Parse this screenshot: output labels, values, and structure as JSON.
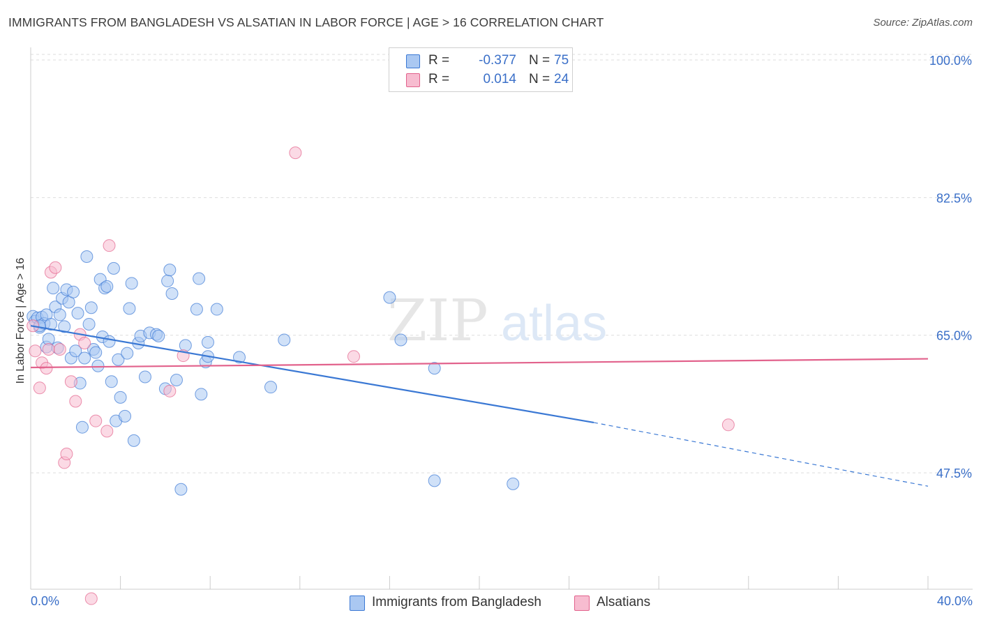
{
  "title": "IMMIGRANTS FROM BANGLADESH VS ALSATIAN IN LABOR FORCE | AGE > 16 CORRELATION CHART",
  "source": "Source: ZipAtlas.com",
  "watermark": {
    "zip": "ZIP",
    "atlas": "atlas"
  },
  "legend_top": [
    {
      "swatch_color": "#aac8f2",
      "r_label": "R =",
      "r_value": "-0.377",
      "n_label": "N =",
      "n_value": "75"
    },
    {
      "swatch_color": "#f7bcd0",
      "r_label": "R =",
      "r_value": "0.014",
      "n_label": "N =",
      "n_value": "24"
    }
  ],
  "legend_bottom": [
    {
      "label": "Immigrants from Bangladesh",
      "swatch_color": "#aac8f2"
    },
    {
      "label": "Alsatians",
      "swatch_color": "#f7bcd0"
    }
  ],
  "chart_data": {
    "type": "scatter",
    "title": "IMMIGRANTS FROM BANGLADESH VS ALSATIAN IN LABOR FORCE | AGE > 16 CORRELATION CHART",
    "xlabel": "",
    "ylabel": "In Labor Force | Age > 16",
    "xlim": [
      0,
      40
    ],
    "ylim": [
      32.7,
      101.6
    ],
    "x_tick_labels": [
      "0.0%",
      "40.0%"
    ],
    "y_ticks": [
      47.5,
      65.0,
      82.5,
      100.0
    ],
    "y_tick_labels": [
      "47.5%",
      "65.0%",
      "82.5%",
      "100.0%"
    ],
    "grid": "horizontal dashed",
    "legend_placement": "top-center and bottom",
    "series": [
      {
        "name": "Immigrants from Bangladesh",
        "color": "#3a78d4",
        "marker_color": "#aac8f2",
        "points": [
          [
            0.1,
            67.4
          ],
          [
            0.2,
            66.8
          ],
          [
            0.3,
            67.2
          ],
          [
            0.4,
            66.0
          ],
          [
            0.5,
            67.3
          ],
          [
            0.6,
            66.5
          ],
          [
            0.7,
            67.6
          ],
          [
            0.7,
            63.5
          ],
          [
            0.8,
            64.5
          ],
          [
            0.9,
            66.4
          ],
          [
            1.0,
            71.0
          ],
          [
            1.1,
            68.6
          ],
          [
            1.2,
            63.4
          ],
          [
            1.3,
            67.6
          ],
          [
            1.4,
            69.7
          ],
          [
            1.5,
            66.1
          ],
          [
            1.6,
            70.8
          ],
          [
            1.7,
            69.2
          ],
          [
            1.8,
            62.1
          ],
          [
            1.9,
            70.5
          ],
          [
            2.0,
            63.0
          ],
          [
            2.1,
            67.8
          ],
          [
            2.2,
            58.9
          ],
          [
            2.3,
            53.3
          ],
          [
            2.4,
            62.1
          ],
          [
            2.5,
            75.0
          ],
          [
            2.6,
            66.4
          ],
          [
            2.7,
            68.5
          ],
          [
            2.8,
            63.2
          ],
          [
            2.9,
            62.8
          ],
          [
            3.0,
            61.1
          ],
          [
            3.1,
            72.1
          ],
          [
            3.2,
            64.8
          ],
          [
            3.3,
            71.0
          ],
          [
            3.4,
            71.2
          ],
          [
            3.5,
            64.2
          ],
          [
            3.6,
            59.1
          ],
          [
            3.7,
            73.5
          ],
          [
            3.8,
            54.1
          ],
          [
            3.9,
            61.9
          ],
          [
            4.0,
            57.1
          ],
          [
            4.2,
            54.7
          ],
          [
            4.3,
            62.7
          ],
          [
            4.4,
            68.4
          ],
          [
            4.5,
            71.6
          ],
          [
            4.6,
            51.6
          ],
          [
            4.8,
            64.0
          ],
          [
            4.9,
            64.9
          ],
          [
            5.1,
            59.7
          ],
          [
            5.3,
            65.3
          ],
          [
            5.6,
            65.1
          ],
          [
            5.7,
            64.9
          ],
          [
            6.0,
            58.2
          ],
          [
            6.1,
            71.9
          ],
          [
            6.2,
            73.3
          ],
          [
            6.3,
            70.3
          ],
          [
            6.5,
            59.3
          ],
          [
            6.7,
            45.4
          ],
          [
            6.9,
            63.7
          ],
          [
            7.4,
            68.3
          ],
          [
            7.5,
            72.2
          ],
          [
            7.6,
            57.5
          ],
          [
            7.8,
            61.6
          ],
          [
            7.9,
            62.3
          ],
          [
            7.9,
            64.1
          ],
          [
            8.3,
            68.3
          ],
          [
            9.3,
            62.2
          ],
          [
            10.7,
            58.4
          ],
          [
            11.3,
            64.4
          ],
          [
            16.0,
            69.8
          ],
          [
            16.5,
            64.4
          ],
          [
            18.0,
            60.8
          ],
          [
            18.0,
            46.5
          ],
          [
            21.5,
            46.1
          ],
          [
            0.4,
            66.2
          ]
        ],
        "trend": {
          "x1": 0,
          "y1": 66.2,
          "x2": 25.1,
          "y2": 53.9,
          "dash_x2": 40,
          "dash_y2": 45.8
        }
      },
      {
        "name": "Alsatians",
        "color": "#e2628c",
        "marker_color": "#f7bcd0",
        "points": [
          [
            0.1,
            66.2
          ],
          [
            0.2,
            63.0
          ],
          [
            0.4,
            58.3
          ],
          [
            0.5,
            61.5
          ],
          [
            0.7,
            60.8
          ],
          [
            0.8,
            63.2
          ],
          [
            0.9,
            73.0
          ],
          [
            1.1,
            73.6
          ],
          [
            1.3,
            63.2
          ],
          [
            1.5,
            48.8
          ],
          [
            1.6,
            49.9
          ],
          [
            1.8,
            59.1
          ],
          [
            2.0,
            56.6
          ],
          [
            2.2,
            65.1
          ],
          [
            2.4,
            64.0
          ],
          [
            2.7,
            31.5
          ],
          [
            2.9,
            54.1
          ],
          [
            3.4,
            52.8
          ],
          [
            3.5,
            76.4
          ],
          [
            6.2,
            57.9
          ],
          [
            6.8,
            62.4
          ],
          [
            11.8,
            88.2
          ],
          [
            14.4,
            62.3
          ],
          [
            31.1,
            53.6
          ]
        ],
        "trend": {
          "x1": 0,
          "y1": 60.9,
          "x2": 40,
          "y2": 62.0
        }
      }
    ]
  }
}
